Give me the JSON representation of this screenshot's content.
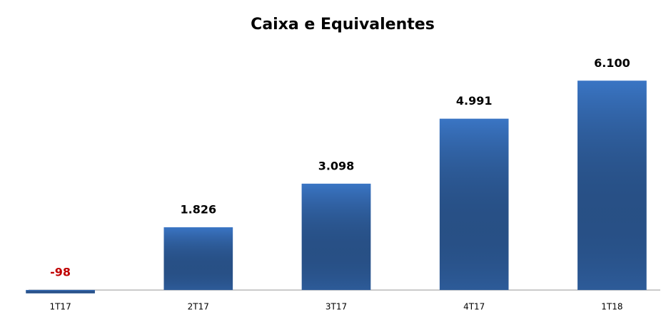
{
  "chart_data": {
    "type": "bar",
    "title": "Caixa e Equivalentes",
    "categories": [
      "1T17",
      "2T17",
      "3T17",
      "4T17",
      "1T18"
    ],
    "values": [
      -98,
      1826,
      3098,
      4991,
      6100
    ],
    "value_labels": [
      "-98",
      "1.826",
      "3.098",
      "4.991",
      "6.100"
    ],
    "color": "#3a75c4",
    "negative_label_color": "#c00000",
    "ylim": [
      -600,
      7000
    ],
    "grid": false
  }
}
